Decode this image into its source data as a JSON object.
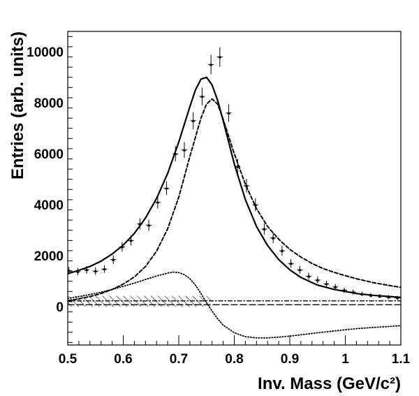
{
  "chart_data": {
    "type": "scatter",
    "title": "",
    "xlabel": "Inv. Mass (GeV/c²)",
    "ylabel": "Entries (arb. units)",
    "xlim": [
      0.5,
      1.1
    ],
    "ylim": [
      -1500,
      10800
    ],
    "x_ticks": [
      0.5,
      0.6,
      0.7,
      0.8,
      0.9,
      1.0,
      1.1
    ],
    "x_tick_labels": [
      "0.5",
      "0.6",
      "0.7",
      "0.8",
      "0.9",
      "1",
      "1.1"
    ],
    "y_ticks": [
      0,
      2000,
      4000,
      6000,
      8000,
      10000
    ],
    "y_tick_labels": [
      "0",
      "2000",
      "4000",
      "6000",
      "8000",
      "10000"
    ],
    "grid": false,
    "legend": "none",
    "data_points": {
      "x": [
        0.502,
        0.518,
        0.534,
        0.55,
        0.566,
        0.582,
        0.598,
        0.614,
        0.63,
        0.646,
        0.662,
        0.678,
        0.694,
        0.71,
        0.726,
        0.742,
        0.758,
        0.774,
        0.79,
        0.806,
        0.822,
        0.838,
        0.854,
        0.87,
        0.886,
        0.902,
        0.918,
        0.934,
        0.95,
        0.966,
        0.982,
        0.998,
        1.014,
        1.03,
        1.046,
        1.062,
        1.078,
        1.094
      ],
      "y": [
        1420,
        1380,
        1450,
        1400,
        1480,
        1850,
        2350,
        2600,
        3250,
        3200,
        4100,
        4650,
        6000,
        6150,
        7300,
        8250,
        9500,
        9800,
        7600,
        5500,
        4750,
        4000,
        3050,
        2700,
        2200,
        1700,
        1450,
        1200,
        1050,
        900,
        780,
        650,
        580,
        500,
        450,
        420,
        380,
        350
      ],
      "yerr": [
        150,
        150,
        150,
        150,
        150,
        170,
        190,
        200,
        220,
        220,
        250,
        270,
        300,
        310,
        330,
        350,
        380,
        380,
        340,
        290,
        270,
        250,
        220,
        210,
        190,
        170,
        150,
        140,
        130,
        120,
        110,
        100,
        95,
        90,
        85,
        80,
        80,
        75
      ]
    },
    "series": [
      {
        "style": "solid",
        "x": [
          0.5,
          0.52,
          0.54,
          0.56,
          0.58,
          0.6,
          0.62,
          0.64,
          0.66,
          0.68,
          0.7,
          0.72,
          0.73,
          0.74,
          0.75,
          0.76,
          0.77,
          0.78,
          0.79,
          0.8,
          0.82,
          0.84,
          0.86,
          0.88,
          0.9,
          0.92,
          0.95,
          0.98,
          1.0,
          1.02,
          1.05,
          1.08,
          1.1
        ],
        "y": [
          1300,
          1430,
          1580,
          1790,
          2070,
          2420,
          2880,
          3480,
          4250,
          5230,
          6460,
          7850,
          8500,
          8930,
          9000,
          8700,
          8100,
          7300,
          6450,
          5600,
          4200,
          3150,
          2400,
          1850,
          1450,
          1150,
          850,
          680,
          600,
          520,
          450,
          400,
          370
        ]
      },
      {
        "style": "dashed",
        "x": [
          0.5,
          0.52,
          0.54,
          0.56,
          0.58,
          0.6,
          0.62,
          0.64,
          0.66,
          0.68,
          0.7,
          0.72,
          0.74,
          0.75,
          0.76,
          0.77,
          0.78,
          0.8,
          0.82,
          0.84,
          0.86,
          0.88,
          0.9,
          0.92,
          0.94,
          0.96,
          0.98,
          1.0,
          1.02,
          1.05,
          1.08,
          1.1
        ],
        "y": [
          240,
          310,
          400,
          520,
          680,
          890,
          1170,
          1580,
          2180,
          3060,
          4300,
          5900,
          7400,
          7950,
          8150,
          7950,
          7350,
          6000,
          4800,
          3850,
          3150,
          2650,
          2250,
          1950,
          1700,
          1500,
          1350,
          1220,
          1100,
          950,
          830,
          760
        ]
      },
      {
        "style": "dotted",
        "x": [
          0.5,
          0.52,
          0.54,
          0.56,
          0.58,
          0.6,
          0.62,
          0.64,
          0.66,
          0.68,
          0.69,
          0.7,
          0.71,
          0.72,
          0.73,
          0.74,
          0.75,
          0.76,
          0.77,
          0.78,
          0.8,
          0.82,
          0.84,
          0.86,
          0.88,
          0.9,
          0.92,
          0.95,
          0.98,
          1.0,
          1.02,
          1.05,
          1.08,
          1.1
        ],
        "y": [
          330,
          400,
          480,
          570,
          680,
          800,
          930,
          1070,
          1210,
          1320,
          1360,
          1340,
          1260,
          1100,
          850,
          520,
          160,
          -170,
          -470,
          -720,
          -1020,
          -1170,
          -1220,
          -1220,
          -1190,
          -1150,
          -1100,
          -1020,
          -950,
          -900,
          -860,
          -810,
          -770,
          -740
        ]
      },
      {
        "style": "dash-dot",
        "x": [
          0.5,
          1.1
        ],
        "y": [
          230,
          230
        ]
      },
      {
        "style": "long-dash",
        "x": [
          0.5,
          1.1
        ],
        "y": [
          80,
          80
        ]
      }
    ],
    "hatched_band": {
      "x_from": 0.5,
      "x_to": 0.76,
      "y_low": 0,
      "y_high": 430
    }
  }
}
